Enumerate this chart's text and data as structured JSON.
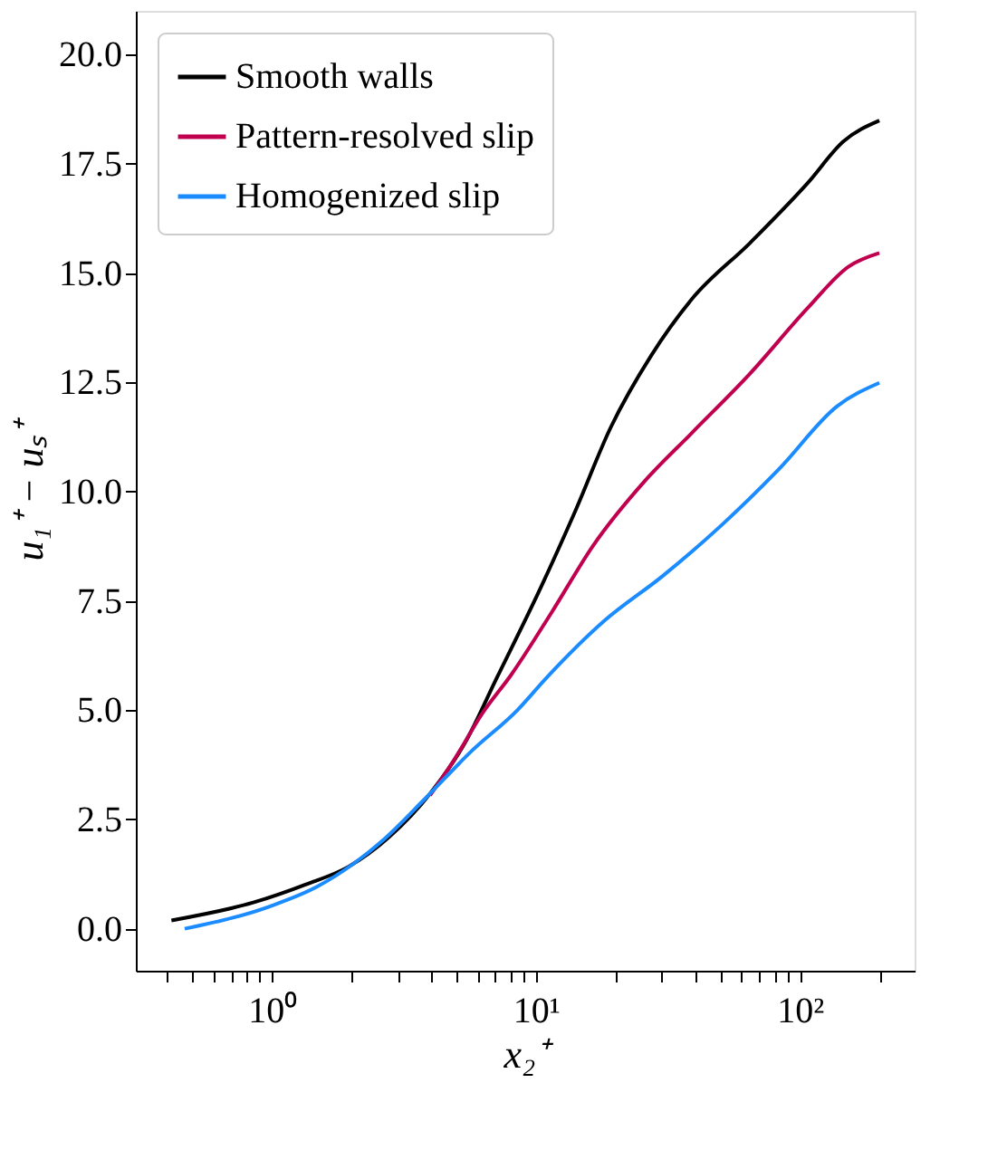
{
  "chart_data": {
    "type": "line",
    "xlabel": "x₂⁺",
    "ylabel": "u₁⁺ − uₛ⁺",
    "log": "x",
    "xlim": [
      0.305,
      272
    ],
    "ylim": [
      -0.96,
      21.0
    ],
    "xticks": [
      {
        "value": 0.4,
        "label": null
      },
      {
        "value": 0.5,
        "label": null
      },
      {
        "value": 0.6,
        "label": null
      },
      {
        "value": 0.7,
        "label": null
      },
      {
        "value": 0.8,
        "label": null
      },
      {
        "value": 0.9,
        "label": null
      },
      {
        "value": 1,
        "label": "10⁰"
      },
      {
        "value": 2,
        "label": null
      },
      {
        "value": 3,
        "label": null
      },
      {
        "value": 4,
        "label": null
      },
      {
        "value": 5,
        "label": null
      },
      {
        "value": 6,
        "label": null
      },
      {
        "value": 7,
        "label": null
      },
      {
        "value": 8,
        "label": null
      },
      {
        "value": 9,
        "label": null
      },
      {
        "value": 10,
        "label": "10¹"
      },
      {
        "value": 20,
        "label": null
      },
      {
        "value": 30,
        "label": null
      },
      {
        "value": 40,
        "label": null
      },
      {
        "value": 50,
        "label": null
      },
      {
        "value": 60,
        "label": null
      },
      {
        "value": 70,
        "label": null
      },
      {
        "value": 80,
        "label": null
      },
      {
        "value": 90,
        "label": null
      },
      {
        "value": 100,
        "label": "10²"
      },
      {
        "value": 200,
        "label": null
      }
    ],
    "yticks": [
      {
        "value": 0,
        "label": "0.0"
      },
      {
        "value": 2.5,
        "label": "2.5"
      },
      {
        "value": 5,
        "label": "5.0"
      },
      {
        "value": 7.5,
        "label": "7.5"
      },
      {
        "value": 10,
        "label": "10.0"
      },
      {
        "value": 12.5,
        "label": "12.5"
      },
      {
        "value": 15,
        "label": "15.0"
      },
      {
        "value": 17.5,
        "label": "17.5"
      },
      {
        "value": 20,
        "label": "20.0"
      }
    ],
    "grid": false,
    "legend": "top left",
    "line_style": "solid",
    "marker": "none",
    "series": [
      {
        "name": "Smooth walls",
        "color": "#000000",
        "x": [
          0.416,
          0.85,
          1.34,
          1.95,
          2.78,
          3.97,
          5.38,
          7.12,
          10.4,
          14.1,
          19.2,
          27.3,
          38.9,
          64.7,
          107,
          146,
          200
        ],
        "values": [
          0.19,
          0.6,
          1.01,
          1.42,
          2.1,
          3.09,
          4.25,
          5.75,
          7.79,
          9.56,
          11.47,
          13.11,
          14.4,
          15.69,
          17.06,
          18.01,
          18.49
        ]
      },
      {
        "name": "Pattern-resolved slip",
        "color": "#c0004f",
        "x": [
          3.97,
          4.87,
          6.27,
          8.08,
          11.5,
          16.4,
          25.9,
          38.9,
          64.7,
          107,
          153,
          200
        ],
        "values": [
          3.05,
          3.84,
          4.93,
          5.82,
          7.25,
          8.75,
          10.25,
          11.34,
          12.7,
          14.2,
          15.15,
          15.46
        ]
      },
      {
        "name": "Homogenized slip",
        "color": "#1a8cff",
        "x": [
          0.467,
          0.98,
          1.48,
          2.05,
          2.65,
          3.78,
          5.67,
          8.5,
          11.0,
          18.2,
          30.2,
          50.2,
          83.4,
          138,
          200
        ],
        "values": [
          0.0,
          0.51,
          0.96,
          1.5,
          2.04,
          2.96,
          4.05,
          5.0,
          5.75,
          7.05,
          8.07,
          9.22,
          10.52,
          11.95,
          12.49
        ]
      }
    ]
  }
}
